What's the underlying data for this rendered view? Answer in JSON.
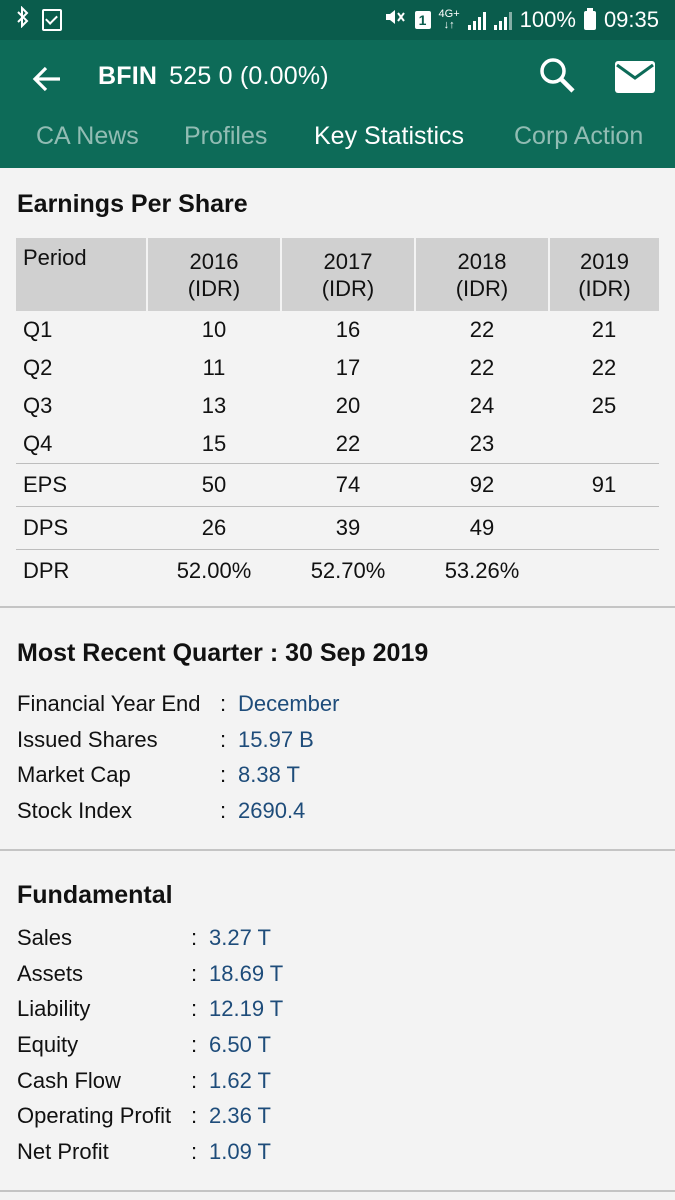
{
  "status_bar": {
    "battery": "100%",
    "time": "09:35",
    "network": "4G+",
    "sim": "1"
  },
  "header": {
    "ticker": "BFIN",
    "price": "525 0 (0.00%)"
  },
  "tabs": [
    {
      "label": "CA News"
    },
    {
      "label": "Profiles"
    },
    {
      "label": "Key Statistics"
    },
    {
      "label": "Corp Action"
    }
  ],
  "eps": {
    "title": "Earnings Per Share",
    "headers": [
      "Period",
      "2016\n(IDR)",
      "2017\n(IDR)",
      "2018\n(IDR)",
      "2019\n(IDR)"
    ],
    "header_year": [
      "2016",
      "2017",
      "2018",
      "2019"
    ],
    "header_unit": "(IDR)",
    "rows": [
      {
        "label": "Q1",
        "values": [
          "10",
          "16",
          "22",
          "21"
        ]
      },
      {
        "label": "Q2",
        "values": [
          "11",
          "17",
          "22",
          "22"
        ]
      },
      {
        "label": "Q3",
        "values": [
          "13",
          "20",
          "24",
          "25"
        ]
      },
      {
        "label": "Q4",
        "values": [
          "15",
          "22",
          "23",
          ""
        ]
      },
      {
        "label": "EPS",
        "values": [
          "50",
          "74",
          "92",
          "91"
        ]
      },
      {
        "label": "DPS",
        "values": [
          "26",
          "39",
          "49",
          ""
        ]
      },
      {
        "label": "DPR",
        "values": [
          "52.00%",
          "52.70%",
          "53.26%",
          ""
        ]
      }
    ]
  },
  "recent_quarter": {
    "title": "Most Recent Quarter : 30 Sep 2019",
    "items": [
      {
        "label": "Financial Year End",
        "value": "December"
      },
      {
        "label": "Issued Shares",
        "value": "15.97 B"
      },
      {
        "label": "Market Cap",
        "value": "8.38 T"
      },
      {
        "label": "Stock Index",
        "value": "2690.4"
      }
    ]
  },
  "fundamental": {
    "title": "Fundamental",
    "items": [
      {
        "label": "Sales",
        "value": "3.27 T"
      },
      {
        "label": "Assets",
        "value": "18.69 T"
      },
      {
        "label": "Liability",
        "value": "12.19 T"
      },
      {
        "label": "Equity",
        "value": "6.50 T"
      },
      {
        "label": "Cash Flow",
        "value": "1.62 T"
      },
      {
        "label": "Operating Profit",
        "value": "2.36 T"
      },
      {
        "label": "Net Profit",
        "value": "1.09 T"
      }
    ]
  },
  "colors": {
    "status_bar": "#0a5c4c",
    "app_bar": "#0d6b58",
    "value_text": "#1e4c7a",
    "table_header": "#d0d0d0"
  }
}
